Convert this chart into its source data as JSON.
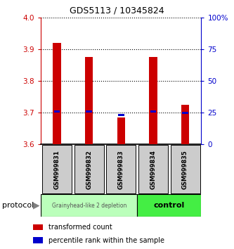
{
  "title": "GDS5113 / 10345824",
  "samples": [
    "GSM999831",
    "GSM999832",
    "GSM999833",
    "GSM999834",
    "GSM999835"
  ],
  "transformed_counts": [
    3.92,
    3.875,
    3.685,
    3.875,
    3.725
  ],
  "percentile_ranks": [
    3.703,
    3.703,
    3.693,
    3.703,
    3.7
  ],
  "y_min": 3.6,
  "y_max": 4.0,
  "y_ticks": [
    3.6,
    3.7,
    3.8,
    3.9,
    4.0
  ],
  "y2_ticks": [
    0,
    25,
    50,
    75,
    100
  ],
  "bar_color": "#cc0000",
  "percentile_color": "#0000cc",
  "group1_label": "Grainyhead-like 2 depletion",
  "group2_label": "control",
  "group1_color": "#bbffbb",
  "group2_color": "#44ee44",
  "legend_red": "transformed count",
  "legend_blue": "percentile rank within the sample",
  "protocol_label": "protocol",
  "bar_width": 0.25,
  "sample_box_color": "#cccccc"
}
